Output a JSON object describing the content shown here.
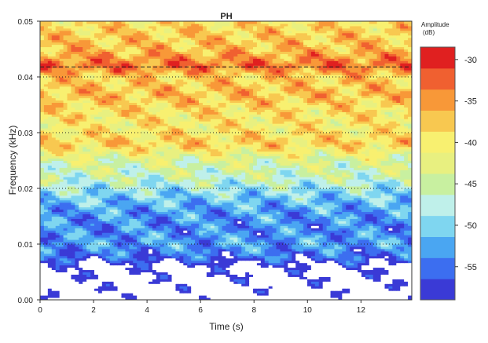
{
  "chart_data": {
    "type": "heatmap",
    "title": "PH",
    "xlabel": "Time (s)",
    "ylabel": "Frequency (kHz)",
    "xlim": [
      0,
      13.9
    ],
    "ylim": [
      0,
      0.05
    ],
    "x_ticks": [
      0,
      2,
      4,
      6,
      8,
      10,
      12
    ],
    "x_tick_labels": [
      "0",
      "2",
      "4",
      "6",
      "8",
      "10",
      "12"
    ],
    "y_ticks": [
      0,
      0.01,
      0.02,
      0.03,
      0.04,
      0.05
    ],
    "y_tick_labels": [
      "0.00",
      "0.01",
      "0.02",
      "0.03",
      "0.04",
      "0.05"
    ],
    "colorbar": {
      "title_line1": "Amplitude",
      "title_line2": "(dB)",
      "range": [
        -59,
        -28.5
      ],
      "ticks": [
        -30,
        -35,
        -40,
        -45,
        -50,
        -55
      ],
      "tick_labels": [
        "-30",
        "-35",
        "-40",
        "-45",
        "-50",
        "-55"
      ],
      "colors": [
        "#3a3ad6",
        "#3c6ef0",
        "#4aa6f2",
        "#7fd6f0",
        "#bff0ea",
        "#c8f0a0",
        "#e8f080",
        "#f8f070",
        "#f8c850",
        "#f89838",
        "#f06030",
        "#e02020"
      ],
      "below_range_color": "#ffffff"
    },
    "reference_lines": {
      "dotted_frequencies": [
        0.01,
        0.02,
        0.03,
        0.04
      ],
      "dashed_frequency": 0.0418
    },
    "frequency_profile": {
      "frequency": [
        0.0,
        0.006,
        0.0075,
        0.01,
        0.013,
        0.016,
        0.019,
        0.022,
        0.025,
        0.028,
        0.031,
        0.034,
        0.037,
        0.04,
        0.042,
        0.045,
        0.048,
        0.05
      ],
      "amplitude_db": [
        -62,
        -60,
        -56,
        -53,
        -54,
        -53,
        -50,
        -46,
        -44,
        -38,
        -40,
        -39,
        -37,
        -38,
        -33,
        -37,
        -38,
        -39
      ]
    }
  }
}
